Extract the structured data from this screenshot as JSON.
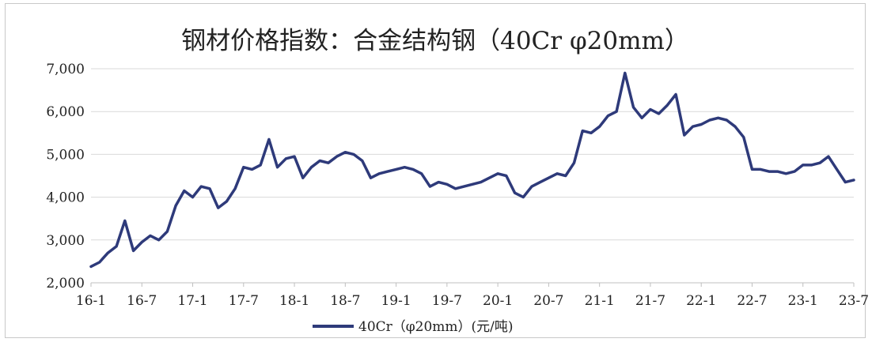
{
  "chart_data": {
    "type": "line",
    "title": "钢材价格指数：合金结构钢（40Cr φ20mm）",
    "xlabel": "",
    "ylabel": "",
    "ylim": [
      2000,
      7000
    ],
    "yticks": [
      2000,
      3000,
      4000,
      5000,
      6000,
      7000
    ],
    "ytick_labels": [
      "2,000",
      "3,000",
      "4,000",
      "5,000",
      "6,000",
      "7,000"
    ],
    "xlim": [
      "2016-01",
      "2023-07"
    ],
    "xtick_labels": [
      "16-1",
      "16-7",
      "17-1",
      "17-7",
      "18-1",
      "18-7",
      "19-1",
      "19-7",
      "20-1",
      "20-7",
      "21-1",
      "21-7",
      "22-1",
      "22-7",
      "23-1",
      "23-7"
    ],
    "grid": "horizontal",
    "legend_position": "bottom",
    "series": [
      {
        "name": "40Cr（φ20mm）(元/吨)",
        "color": "#2e3a7a",
        "x": [
          "2016-01",
          "2016-02",
          "2016-03",
          "2016-04",
          "2016-05",
          "2016-06",
          "2016-07",
          "2016-08",
          "2016-09",
          "2016-10",
          "2016-11",
          "2016-12",
          "2017-01",
          "2017-02",
          "2017-03",
          "2017-04",
          "2017-05",
          "2017-06",
          "2017-07",
          "2017-08",
          "2017-09",
          "2017-10",
          "2017-11",
          "2017-12",
          "2018-01",
          "2018-02",
          "2018-03",
          "2018-04",
          "2018-05",
          "2018-06",
          "2018-07",
          "2018-08",
          "2018-09",
          "2018-10",
          "2018-11",
          "2018-12",
          "2019-01",
          "2019-02",
          "2019-03",
          "2019-04",
          "2019-05",
          "2019-06",
          "2019-07",
          "2019-08",
          "2019-09",
          "2019-10",
          "2019-11",
          "2019-12",
          "2020-01",
          "2020-02",
          "2020-03",
          "2020-04",
          "2020-05",
          "2020-06",
          "2020-07",
          "2020-08",
          "2020-09",
          "2020-10",
          "2020-11",
          "2020-12",
          "2021-01",
          "2021-02",
          "2021-03",
          "2021-04",
          "2021-05",
          "2021-06",
          "2021-07",
          "2021-08",
          "2021-09",
          "2021-10",
          "2021-11",
          "2021-12",
          "2022-01",
          "2022-02",
          "2022-03",
          "2022-04",
          "2022-05",
          "2022-06",
          "2022-07",
          "2022-08",
          "2022-09",
          "2022-10",
          "2022-11",
          "2022-12",
          "2023-01",
          "2023-02",
          "2023-03",
          "2023-04",
          "2023-05",
          "2023-06",
          "2023-07"
        ],
        "values": [
          2380,
          2480,
          2700,
          2850,
          3450,
          2750,
          2950,
          3100,
          3000,
          3200,
          3800,
          4150,
          4000,
          4250,
          4200,
          3750,
          3900,
          4200,
          4700,
          4650,
          4750,
          5350,
          4700,
          4900,
          4950,
          4450,
          4700,
          4850,
          4800,
          4950,
          5050,
          5000,
          4850,
          4450,
          4550,
          4600,
          4650,
          4700,
          4650,
          4550,
          4250,
          4350,
          4300,
          4200,
          4250,
          4300,
          4350,
          4450,
          4550,
          4500,
          4100,
          4000,
          4250,
          4350,
          4450,
          4550,
          4500,
          4800,
          5550,
          5500,
          5650,
          5900,
          6000,
          6900,
          6100,
          5850,
          6050,
          5950,
          6150,
          6400,
          5450,
          5650,
          5700,
          5800,
          5850,
          5800,
          5650,
          5400,
          4650,
          4650,
          4600,
          4600,
          4550,
          4600,
          4750,
          4750,
          4800,
          4950,
          4650,
          4350,
          4400
        ]
      }
    ]
  }
}
